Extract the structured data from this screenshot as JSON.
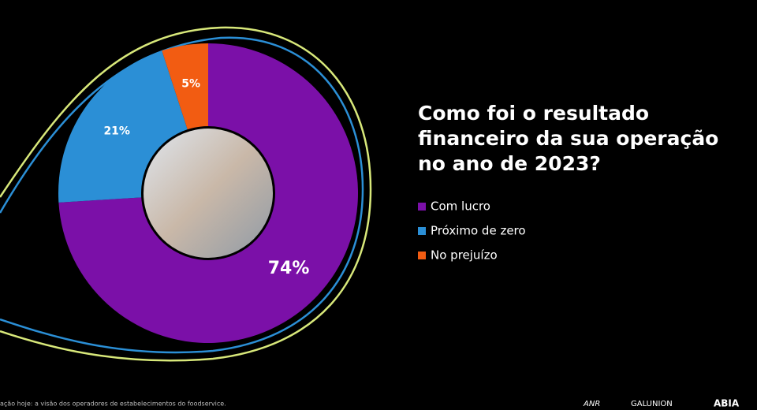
{
  "chart_data": {
    "type": "donut",
    "title": "Como foi o resultado\nfinanceiro da sua operação\nno ano de 2023?",
    "categories": [
      "Com lucro",
      "Próximo de zero",
      "No prejuízo"
    ],
    "values": [
      74,
      21,
      5
    ],
    "value_labels": [
      "74%",
      "21%",
      "5%"
    ],
    "colors": [
      "#7b10a8",
      "#2b8fd6",
      "#f25c12"
    ],
    "legend": "right"
  },
  "footer": {
    "source": "ação hoje: a visão dos operadores de estabelecimentos do foodservice.",
    "logos": [
      "ANR",
      "GALUNION",
      "ABIA"
    ]
  }
}
